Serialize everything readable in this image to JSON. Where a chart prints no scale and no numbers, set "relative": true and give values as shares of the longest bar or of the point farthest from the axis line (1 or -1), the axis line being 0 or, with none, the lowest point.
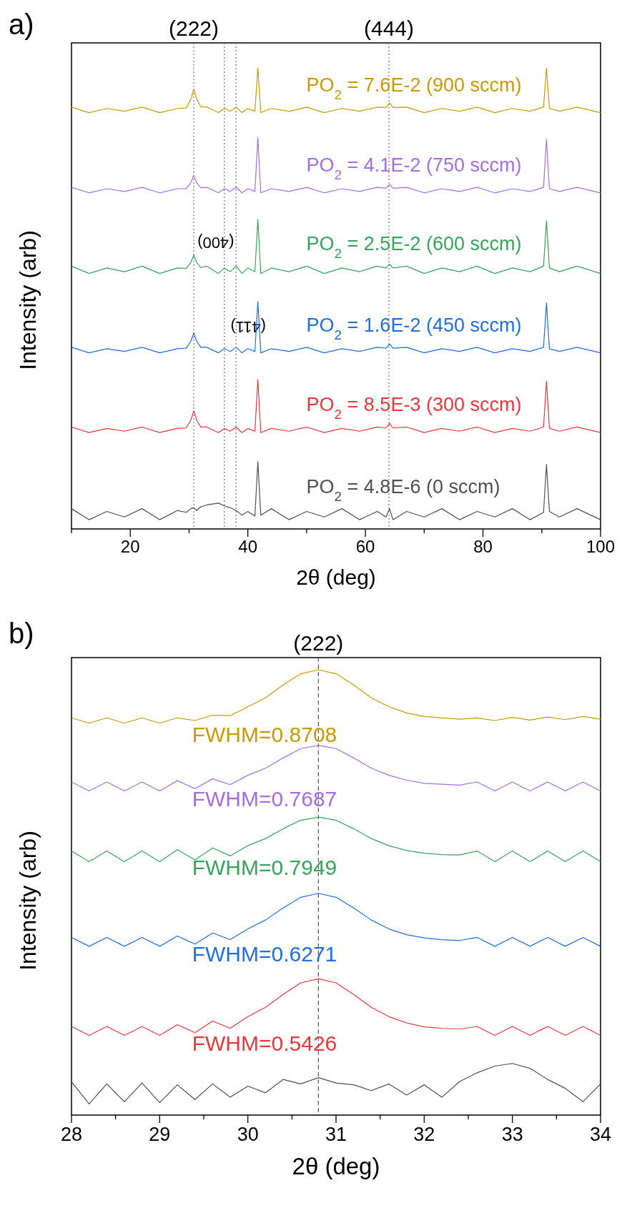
{
  "chart_data": [
    {
      "type": "line",
      "title": "a)",
      "xlabel": "2θ (deg)",
      "ylabel": "Intensity (arb)",
      "relative": true,
      "xlim": [
        10,
        100
      ],
      "xticks": [
        {
          "value": 10,
          "label": null
        },
        20,
        {
          "value": 30,
          "label": null
        },
        40,
        {
          "value": 50,
          "label": null
        },
        60,
        {
          "value": 70,
          "label": null
        },
        80,
        {
          "value": 90,
          "label": null
        },
        100
      ],
      "x": [
        10,
        13,
        16,
        19,
        22,
        25,
        28,
        29.5,
        30.3,
        30.8,
        31.3,
        32,
        33,
        35,
        36,
        37,
        38,
        39,
        40,
        41.2,
        41.7,
        42.2,
        44,
        47,
        50,
        53,
        56,
        59,
        62,
        63.5,
        64.1,
        64.7,
        67,
        70,
        73,
        76,
        79,
        82,
        85,
        88,
        90.3,
        90.8,
        91.3,
        93,
        96,
        100
      ],
      "series": [
        {
          "name": "PO$_{2}$ = 7.6E-2 (900 sccm)",
          "color": "#c99a06",
          "values": [
            0.915,
            0.903,
            0.912,
            0.906,
            0.915,
            0.903,
            0.912,
            0.913,
            0.932,
            0.954,
            0.932,
            0.916,
            0.915,
            0.903,
            0.912,
            0.906,
            0.915,
            0.903,
            0.912,
            0.906,
            1.0,
            0.903,
            0.912,
            0.906,
            0.915,
            0.903,
            0.912,
            0.906,
            0.915,
            0.914,
            0.924,
            0.914,
            0.915,
            0.903,
            0.912,
            0.906,
            0.915,
            0.903,
            0.912,
            0.906,
            0.915,
            0.999,
            0.912,
            0.906,
            0.915,
            0.903
          ]
        },
        {
          "name": "PO$_{2}$ = 4.1E-2 (750 sccm)",
          "color": "#a66ee0",
          "values": [
            0.741,
            0.729,
            0.738,
            0.732,
            0.741,
            0.729,
            0.738,
            0.738,
            0.751,
            0.767,
            0.751,
            0.74,
            0.741,
            0.729,
            0.738,
            0.732,
            0.741,
            0.729,
            0.738,
            0.732,
            0.849,
            0.729,
            0.738,
            0.732,
            0.741,
            0.729,
            0.738,
            0.732,
            0.741,
            0.739,
            0.747,
            0.739,
            0.741,
            0.729,
            0.738,
            0.732,
            0.741,
            0.729,
            0.738,
            0.732,
            0.741,
            0.845,
            0.738,
            0.732,
            0.741,
            0.729
          ]
        },
        {
          "name": "PO$_{2}$ = 2.5E-2 (600 sccm)",
          "color": "#38a35c",
          "values": [
            0.57,
            0.554,
            0.566,
            0.558,
            0.57,
            0.554,
            0.566,
            0.565,
            0.578,
            0.594,
            0.578,
            0.567,
            0.57,
            0.554,
            0.566,
            0.558,
            0.57,
            0.554,
            0.566,
            0.558,
            0.671,
            0.554,
            0.566,
            0.558,
            0.57,
            0.554,
            0.566,
            0.558,
            0.57,
            0.566,
            0.574,
            0.566,
            0.57,
            0.554,
            0.566,
            0.558,
            0.57,
            0.554,
            0.566,
            0.558,
            0.57,
            0.668,
            0.566,
            0.558,
            0.57,
            0.554
          ]
        },
        {
          "name": "PO$_{2}$ = 1.6E-2 (450 sccm)",
          "color": "#1f6fdc",
          "values": [
            0.394,
            0.382,
            0.391,
            0.385,
            0.394,
            0.382,
            0.391,
            0.392,
            0.407,
            0.425,
            0.407,
            0.394,
            0.394,
            0.382,
            0.391,
            0.385,
            0.394,
            0.382,
            0.391,
            0.385,
            0.493,
            0.382,
            0.391,
            0.385,
            0.394,
            0.382,
            0.391,
            0.385,
            0.394,
            0.392,
            0.401,
            0.392,
            0.394,
            0.382,
            0.391,
            0.385,
            0.394,
            0.382,
            0.391,
            0.385,
            0.394,
            0.49,
            0.391,
            0.385,
            0.394,
            0.382
          ]
        },
        {
          "name": "PO$_{2}$ = 8.5E-3 (300 sccm)",
          "color": "#e8383d",
          "values": [
            0.221,
            0.209,
            0.218,
            0.212,
            0.221,
            0.209,
            0.218,
            0.219,
            0.236,
            0.256,
            0.236,
            0.221,
            0.221,
            0.209,
            0.218,
            0.212,
            0.221,
            0.209,
            0.218,
            0.212,
            0.324,
            0.209,
            0.218,
            0.212,
            0.221,
            0.209,
            0.218,
            0.212,
            0.221,
            0.219,
            0.229,
            0.219,
            0.221,
            0.209,
            0.218,
            0.212,
            0.221,
            0.209,
            0.218,
            0.212,
            0.221,
            0.32,
            0.218,
            0.212,
            0.221,
            0.209
          ]
        },
        {
          "name": "PO$_{2}$ = 4.8E-6 (0 sccm)",
          "color": "#505050",
          "values": [
            0.044,
            0.02,
            0.038,
            0.026,
            0.044,
            0.02,
            0.04,
            0.036,
            0.044,
            0.046,
            0.04,
            0.048,
            0.052,
            0.056,
            0.05,
            0.046,
            0.04,
            0.03,
            0.038,
            0.028,
            0.146,
            0.03,
            0.044,
            0.02,
            0.038,
            0.026,
            0.044,
            0.02,
            0.038,
            0.026,
            0.044,
            0.02,
            0.038,
            0.026,
            0.044,
            0.02,
            0.038,
            0.026,
            0.044,
            0.02,
            0.036,
            0.14,
            0.038,
            0.026,
            0.044,
            0.02
          ]
        }
      ],
      "ref_lines": [
        {
          "axis": "x",
          "value": 30.8,
          "color": "#777777",
          "line_style": "dotted"
        },
        {
          "axis": "x",
          "value": 36,
          "color": "#777777",
          "line_style": "dotted"
        },
        {
          "axis": "x",
          "value": 38,
          "color": "#777777",
          "line_style": "dotted"
        },
        {
          "axis": "x",
          "value": 64,
          "color": "#777777",
          "line_style": "dotted"
        }
      ],
      "annotations": [
        "(222)",
        "(400)",
        "(411)",
        "(444)"
      ]
    },
    {
      "type": "line",
      "title": "b)",
      "xlabel": "2θ (deg)",
      "ylabel": "Intensity (arb)",
      "relative": true,
      "xlim": [
        28,
        34
      ],
      "xticks": [
        28,
        {
          "value": 28.5,
          "label": null
        },
        29,
        {
          "value": 29.5,
          "label": null
        },
        30,
        {
          "value": 30.5,
          "label": null
        },
        31,
        {
          "value": 31.5,
          "label": null
        },
        32,
        {
          "value": 32.5,
          "label": null
        },
        33,
        {
          "value": 33.5,
          "label": null
        },
        34
      ],
      "x": [
        28,
        28.2,
        28.4,
        28.6,
        28.8,
        29,
        29.2,
        29.4,
        29.6,
        29.8,
        30,
        30.2,
        30.4,
        30.6,
        30.8,
        31,
        31.2,
        31.4,
        31.6,
        31.8,
        32,
        32.2,
        32.4,
        32.6,
        32.8,
        33,
        33.2,
        33.4,
        33.6,
        33.8,
        34
      ],
      "series": [
        {
          "name": "FWHM=0.8708",
          "color": "#c99a06",
          "values": [
            0.892,
            0.88,
            0.892,
            0.88,
            0.892,
            0.88,
            0.892,
            0.886,
            0.898,
            0.897,
            0.917,
            0.937,
            0.966,
            0.991,
            1.0,
            0.991,
            0.966,
            0.937,
            0.917,
            0.903,
            0.895,
            0.892,
            0.889,
            0.892,
            0.886,
            0.893,
            0.887,
            0.894,
            0.888,
            0.895,
            0.889
          ]
        },
        {
          "name": "FWHM=0.7687",
          "color": "#a66ee0",
          "values": [
            0.748,
            0.728,
            0.748,
            0.728,
            0.748,
            0.728,
            0.751,
            0.733,
            0.755,
            0.742,
            0.763,
            0.779,
            0.802,
            0.823,
            0.83,
            0.823,
            0.802,
            0.779,
            0.763,
            0.752,
            0.745,
            0.743,
            0.741,
            0.748,
            0.728,
            0.748,
            0.728,
            0.748,
            0.728,
            0.748,
            0.728
          ]
        },
        {
          "name": "FWHM=0.7949",
          "color": "#38a35c",
          "values": [
            0.593,
            0.569,
            0.593,
            0.569,
            0.593,
            0.569,
            0.596,
            0.573,
            0.6,
            0.582,
            0.605,
            0.621,
            0.643,
            0.662,
            0.669,
            0.662,
            0.643,
            0.621,
            0.605,
            0.594,
            0.588,
            0.585,
            0.584,
            0.593,
            0.569,
            0.593,
            0.569,
            0.593,
            0.569,
            0.593,
            0.569
          ]
        },
        {
          "name": "FWHM=0.6271",
          "color": "#1f6fdc",
          "values": [
            0.399,
            0.379,
            0.399,
            0.379,
            0.399,
            0.379,
            0.402,
            0.384,
            0.409,
            0.394,
            0.418,
            0.438,
            0.465,
            0.489,
            0.498,
            0.489,
            0.465,
            0.438,
            0.418,
            0.405,
            0.398,
            0.394,
            0.392,
            0.399,
            0.379,
            0.399,
            0.379,
            0.399,
            0.379,
            0.399,
            0.379
          ]
        },
        {
          "name": "FWHM=0.5426",
          "color": "#e8383d",
          "values": [
            0.199,
            0.179,
            0.199,
            0.179,
            0.199,
            0.179,
            0.203,
            0.185,
            0.211,
            0.195,
            0.221,
            0.242,
            0.271,
            0.297,
            0.306,
            0.297,
            0.271,
            0.242,
            0.221,
            0.207,
            0.198,
            0.195,
            0.193,
            0.199,
            0.179,
            0.199,
            0.179,
            0.199,
            0.179,
            0.199,
            0.179
          ]
        },
        {
          "color": "#505050",
          "values": [
            0.075,
            0.025,
            0.07,
            0.03,
            0.072,
            0.028,
            0.068,
            0.035,
            0.07,
            0.04,
            0.065,
            0.05,
            0.08,
            0.07,
            0.084,
            0.072,
            0.068,
            0.055,
            0.07,
            0.045,
            0.068,
            0.04,
            0.075,
            0.095,
            0.11,
            0.116,
            0.105,
            0.08,
            0.06,
            0.03,
            0.07
          ]
        }
      ],
      "ref_lines": [
        {
          "axis": "x",
          "value": 30.8,
          "color": "#555555",
          "line_style": "dashed"
        }
      ],
      "annotations": [
        "(222)"
      ]
    }
  ]
}
